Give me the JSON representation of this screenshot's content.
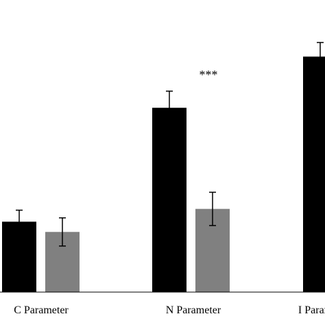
{
  "chart_data": {
    "type": "bar",
    "categories": [
      "C Parameter",
      "N Parameter",
      "I Parameter"
    ],
    "series": [
      {
        "values": [
          0.55,
          1.44,
          1.84
        ],
        "errors": [
          0.09,
          0.13,
          0.11
        ],
        "color": "#000000"
      },
      {
        "values": [
          0.47,
          0.65,
          null
        ],
        "errors": [
          0.11,
          0.13,
          null
        ],
        "color": "#808080"
      }
    ],
    "annotations": [
      {
        "category": "N Parameter",
        "text": "***"
      }
    ],
    "title": "",
    "xlabel": "",
    "ylabel": "",
    "ylim": [
      0,
      2.25
    ],
    "grid": false,
    "legend": "none"
  }
}
